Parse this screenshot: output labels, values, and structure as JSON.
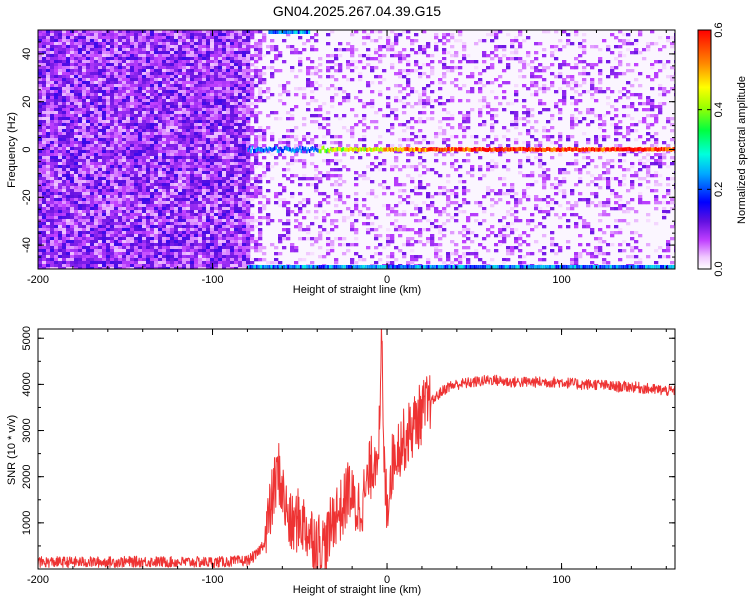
{
  "chart_data": [
    {
      "type": "heatmap",
      "title": "GN04.2025.267.04.39.G15",
      "xlabel": "Height of straight line (km)",
      "ylabel": "Frequency (Hz)",
      "xlim": [
        -200,
        165
      ],
      "ylim": [
        -50,
        50
      ],
      "x_ticks": [
        -200,
        -100,
        0,
        100
      ],
      "y_ticks": [
        40,
        20,
        0,
        -20,
        -40
      ],
      "x_tick_labels": [
        "-200",
        "-100",
        "0",
        "100"
      ],
      "y_tick_labels": [
        "40",
        "20",
        "0",
        "-20",
        "-40"
      ],
      "colorbar": {
        "label": "Normalized spectral amplitude",
        "range": [
          0.0,
          0.6
        ],
        "ticks": [
          0.0,
          0.2,
          0.4,
          0.6
        ],
        "tick_labels": [
          "0.0",
          "0.2",
          "0.4",
          "0.6"
        ],
        "colormap": "rainbow (white-magenta-purple-blue-cyan-green-yellow-orange-red)"
      },
      "features": {
        "noise_transition_height_km": -80,
        "carrier_line_frequency_hz": 0,
        "carrier_line_start_km": -80,
        "carrier_line_peak_amplitude": 0.6,
        "edge_band_frequencies_hz": [
          50,
          -50
        ]
      }
    },
    {
      "type": "line",
      "xlabel": "Height of straight line (km)",
      "ylabel": "SNR (10 * v/v)",
      "xlim": [
        -200,
        165
      ],
      "ylim": [
        0,
        5200
      ],
      "x_ticks": [
        -200,
        -100,
        0,
        100
      ],
      "y_ticks": [
        1000,
        2000,
        3000,
        4000,
        5000
      ],
      "x_tick_labels": [
        "-200",
        "-100",
        "0",
        "100"
      ],
      "y_tick_labels": [
        "1000",
        "2000",
        "3000",
        "4000",
        "5000"
      ],
      "series": [
        {
          "name": "SNR",
          "color": "#ee3333",
          "x": [
            -200,
            -180,
            -160,
            -140,
            -120,
            -100,
            -90,
            -80,
            -75,
            -70,
            -65,
            -62,
            -58,
            -55,
            -50,
            -45,
            -40,
            -35,
            -30,
            -25,
            -22,
            -20,
            -18,
            -15,
            -12,
            -10,
            -8,
            -6,
            -4,
            -3,
            -2,
            0,
            2,
            5,
            10,
            15,
            20,
            25,
            30,
            35,
            40,
            50,
            60,
            70,
            80,
            90,
            100,
            110,
            120,
            130,
            140,
            150,
            165
          ],
          "values": [
            150,
            150,
            150,
            160,
            150,
            150,
            160,
            180,
            300,
            600,
            1700,
            2100,
            1300,
            900,
            1100,
            800,
            600,
            500,
            1200,
            1300,
            1800,
            1500,
            1300,
            1400,
            1700,
            2100,
            2300,
            2600,
            3000,
            5200,
            2400,
            1300,
            2100,
            2600,
            2800,
            3100,
            3400,
            3600,
            3800,
            3950,
            4000,
            4050,
            4100,
            4050,
            4050,
            4050,
            4050,
            4000,
            4000,
            3950,
            3950,
            3900,
            3850
          ],
          "noise_amplitude": 120
        }
      ]
    }
  ]
}
